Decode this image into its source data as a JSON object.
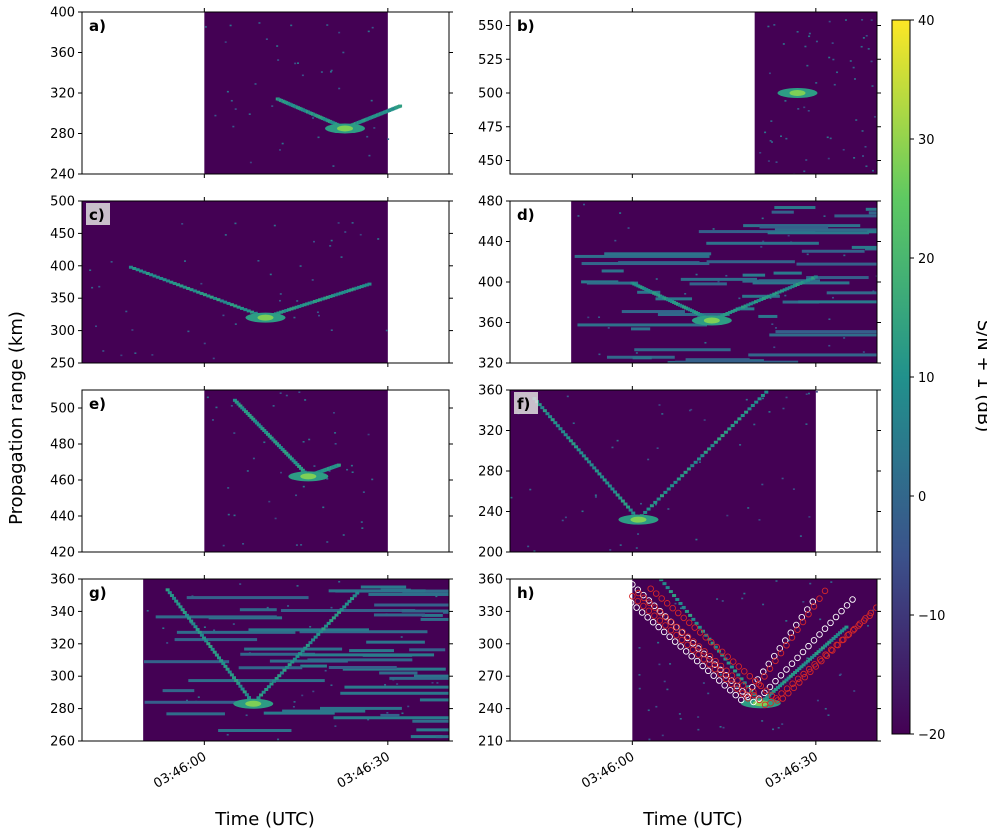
{
  "figure": {
    "ylabel": "Propagation range (km)",
    "xlabel": "Time (UTC)",
    "colorbar_label": "S/N + 1 (dB)",
    "colormap": "viridis",
    "colors": {
      "background": "#440154",
      "dark": "#31688e",
      "mid": "#21918c",
      "light": "#5ec962",
      "peak": "#fde725",
      "marker_white": "#ffffff",
      "marker_red": "#d62728"
    }
  },
  "colorbar": {
    "range": [
      -20,
      40
    ],
    "ticks": [
      "−20",
      "−10",
      "0",
      "10",
      "20",
      "30",
      "40"
    ]
  },
  "xaxis": {
    "tick_labels": [
      "03:46:00",
      "03:46:30"
    ],
    "tick_seconds": [
      0,
      30
    ],
    "range_seconds": [
      -20,
      40
    ]
  },
  "chart_data": [
    {
      "label": "a)",
      "type": "heatmap",
      "col": 0,
      "row": 0,
      "yticks": [
        "240",
        "280",
        "320",
        "360",
        "400"
      ],
      "ylim": [
        240,
        400
      ],
      "data_time": [
        0,
        30
      ],
      "vertex": {
        "t": 23,
        "r": 285
      },
      "arms": [
        {
          "slope": 2.6,
          "up_to": 360,
          "t_from": 12
        },
        {
          "slope": -2.4,
          "up_to": 305,
          "t_to": 32
        }
      ]
    },
    {
      "label": "b)",
      "type": "heatmap",
      "col": 1,
      "row": 0,
      "yticks": [
        "450",
        "475",
        "500",
        "525",
        "550"
      ],
      "ylim": [
        440,
        560
      ],
      "data_time": [
        20,
        40
      ],
      "vertex": {
        "t": 27,
        "r": 500
      },
      "arms": []
    },
    {
      "label": "c)",
      "type": "heatmap",
      "col": 0,
      "row": 1,
      "yticks": [
        "250",
        "300",
        "350",
        "400",
        "450",
        "500"
      ],
      "ylim": [
        250,
        500
      ],
      "data_time": [
        -20,
        30
      ],
      "vertex": {
        "t": 10,
        "r": 320
      },
      "arms": [
        {
          "slope": 3.5,
          "up_to": 420,
          "t_from": -12
        },
        {
          "slope": -3,
          "up_to": 330,
          "t_to": 27
        }
      ]
    },
    {
      "label": "d)",
      "type": "heatmap",
      "col": 1,
      "row": 1,
      "yticks": [
        "320",
        "360",
        "400",
        "440",
        "480"
      ],
      "ylim": [
        320,
        480
      ],
      "data_time": [
        -10,
        40
      ],
      "vertex": {
        "t": 13,
        "r": 362
      },
      "arms": [
        {
          "slope": 2.8,
          "up_to": 400,
          "t_from": 0
        },
        {
          "slope": -2.5,
          "up_to": 385,
          "t_to": 30
        }
      ]
    },
    {
      "label": "e)",
      "type": "heatmap",
      "col": 0,
      "row": 2,
      "yticks": [
        "420",
        "440",
        "460",
        "480",
        "500"
      ],
      "ylim": [
        420,
        510
      ],
      "data_time": [
        0,
        30
      ],
      "vertex": {
        "t": 17,
        "r": 462
      },
      "arms": [
        {
          "slope": 3.5,
          "up_to": 505,
          "t_from": 5
        },
        {
          "slope": -1.2,
          "up_to": 465,
          "t_to": 22
        }
      ]
    },
    {
      "label": "f)",
      "type": "heatmap",
      "col": 1,
      "row": 2,
      "yticks": [
        "200",
        "240",
        "280",
        "320",
        "360"
      ],
      "ylim": [
        200,
        360
      ],
      "data_time": [
        -20,
        30
      ],
      "vertex": {
        "t": 1,
        "r": 232
      },
      "arms": [
        {
          "slope": 7,
          "up_to": 340,
          "t_from": -16
        },
        {
          "slope": -6,
          "up_to": 330,
          "t_to": 23
        }
      ]
    },
    {
      "label": "g)",
      "type": "heatmap",
      "col": 0,
      "row": 3,
      "yticks": [
        "260",
        "280",
        "300",
        "320",
        "340",
        "360"
      ],
      "ylim": [
        260,
        360
      ],
      "data_time": [
        -10,
        40
      ],
      "vertex": {
        "t": 8,
        "r": 283
      },
      "arms": [
        {
          "slope": 5,
          "up_to": 350,
          "t_from": -6
        },
        {
          "slope": -4,
          "up_to": 340,
          "t_to": 25
        }
      ]
    },
    {
      "label": "h)",
      "type": "heatmap",
      "col": 1,
      "row": 3,
      "yticks": [
        "210",
        "240",
        "270",
        "300",
        "330",
        "360"
      ],
      "ylim": [
        210,
        360
      ],
      "data_time": [
        0,
        50
      ],
      "vertex": {
        "t": 21,
        "r": 245
      },
      "arms": [
        {
          "slope": 7,
          "up_to": 330,
          "t_from": 0
        },
        {
          "slope": -5,
          "up_to": 320,
          "t_to": 35
        }
      ],
      "markers": [
        {
          "color": "white",
          "t_min": -2,
          "t_vert": 18,
          "r_vert": 247,
          "slope_l": 5,
          "slope_r": 8,
          "t_max": 30
        },
        {
          "color": "white",
          "t_min": 0,
          "t_vert": 20,
          "r_vert": 245,
          "slope_l": 5.5,
          "slope_r": 6,
          "t_max": 36
        },
        {
          "color": "red",
          "t_min": 0,
          "t_vert": 19,
          "r_vert": 249,
          "slope_l": 5,
          "slope_r": 8,
          "t_max": 32
        },
        {
          "color": "red",
          "t_min": 1,
          "t_vert": 22,
          "r_vert": 242,
          "slope_l": 5,
          "slope_r": 5,
          "t_max": 39
        },
        {
          "color": "red",
          "t_min": 3,
          "t_vert": 24,
          "r_vert": 246,
          "slope_l": 5,
          "slope_r": 5.5,
          "t_max": 44
        }
      ]
    }
  ]
}
